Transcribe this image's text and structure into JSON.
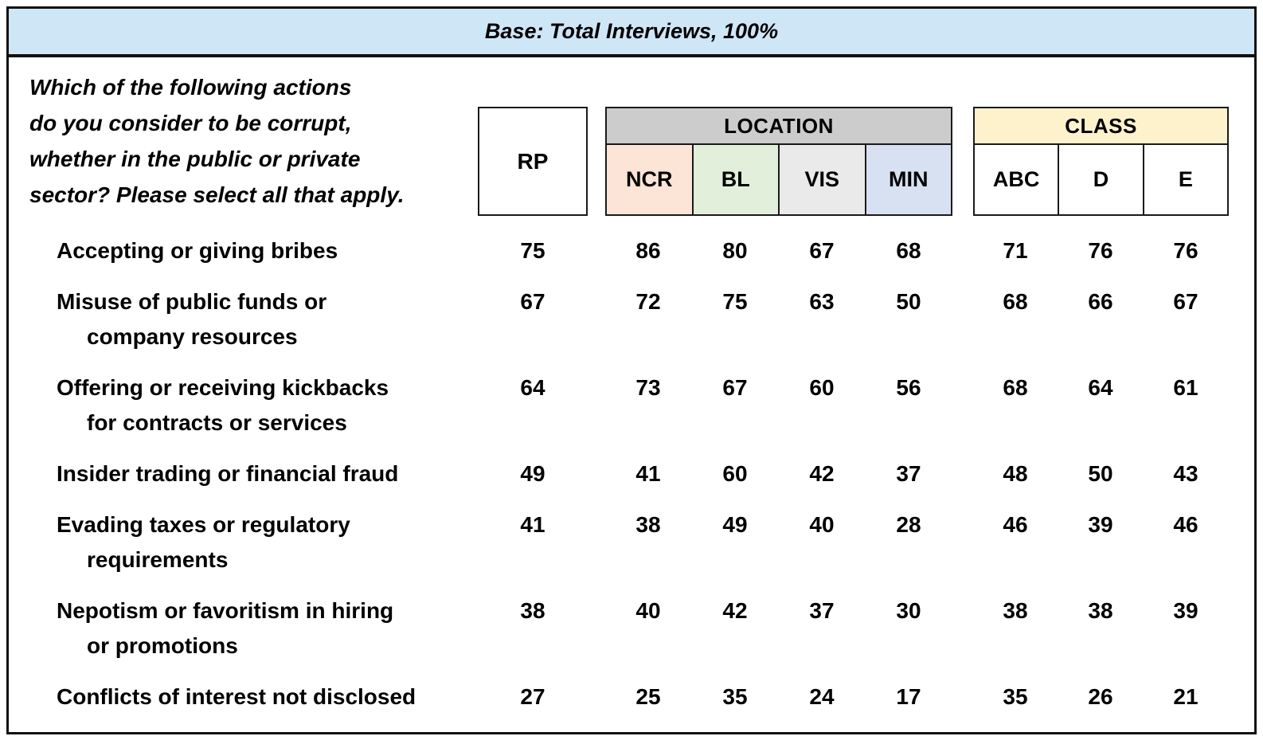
{
  "banner": {
    "text": "Base: Total Interviews, 100%",
    "bg": "#cfe6f6"
  },
  "question": {
    "lines": [
      "Which of the following actions",
      "do you consider to be corrupt,",
      "whether in the public or private",
      "sector? Please select all that apply."
    ]
  },
  "table": {
    "rp_header": "RP",
    "value_columns": [
      "RP",
      "NCR",
      "BL",
      "VIS",
      "MIN",
      "ABC",
      "D",
      "E"
    ],
    "groups": [
      {
        "label": "LOCATION",
        "header_bg": "#cccccc",
        "columns": [
          {
            "label": "NCR",
            "bg": "#fce4d6"
          },
          {
            "label": "BL",
            "bg": "#e2efda"
          },
          {
            "label": "VIS",
            "bg": "#eaeaea"
          },
          {
            "label": "MIN",
            "bg": "#d8e1f2"
          }
        ]
      },
      {
        "label": "CLASS",
        "header_bg": "#fef2cc",
        "columns": [
          {
            "label": "ABC",
            "bg": "#ffffff"
          },
          {
            "label": "D",
            "bg": "#ffffff"
          },
          {
            "label": "E",
            "bg": "#ffffff"
          }
        ]
      }
    ],
    "rows": [
      {
        "label_lines": [
          "Accepting or giving bribes"
        ],
        "values": [
          75,
          86,
          80,
          67,
          68,
          71,
          76,
          76
        ]
      },
      {
        "label_lines": [
          "Misuse of public funds or",
          "company resources"
        ],
        "values": [
          67,
          72,
          75,
          63,
          50,
          68,
          66,
          67
        ]
      },
      {
        "label_lines": [
          "Offering or receiving kickbacks",
          "for contracts or services"
        ],
        "values": [
          64,
          73,
          67,
          60,
          56,
          68,
          64,
          61
        ]
      },
      {
        "label_lines": [
          "Insider trading or financial fraud"
        ],
        "values": [
          49,
          41,
          60,
          42,
          37,
          48,
          50,
          43
        ]
      },
      {
        "label_lines": [
          "Evading taxes or regulatory",
          "requirements"
        ],
        "values": [
          41,
          38,
          49,
          40,
          28,
          46,
          39,
          46
        ]
      },
      {
        "label_lines": [
          "Nepotism or favoritism in hiring",
          "or promotions"
        ],
        "values": [
          38,
          40,
          42,
          37,
          30,
          38,
          38,
          39
        ]
      },
      {
        "label_lines": [
          "Conflicts of interest not disclosed"
        ],
        "values": [
          27,
          25,
          35,
          24,
          17,
          35,
          26,
          21
        ]
      }
    ]
  }
}
